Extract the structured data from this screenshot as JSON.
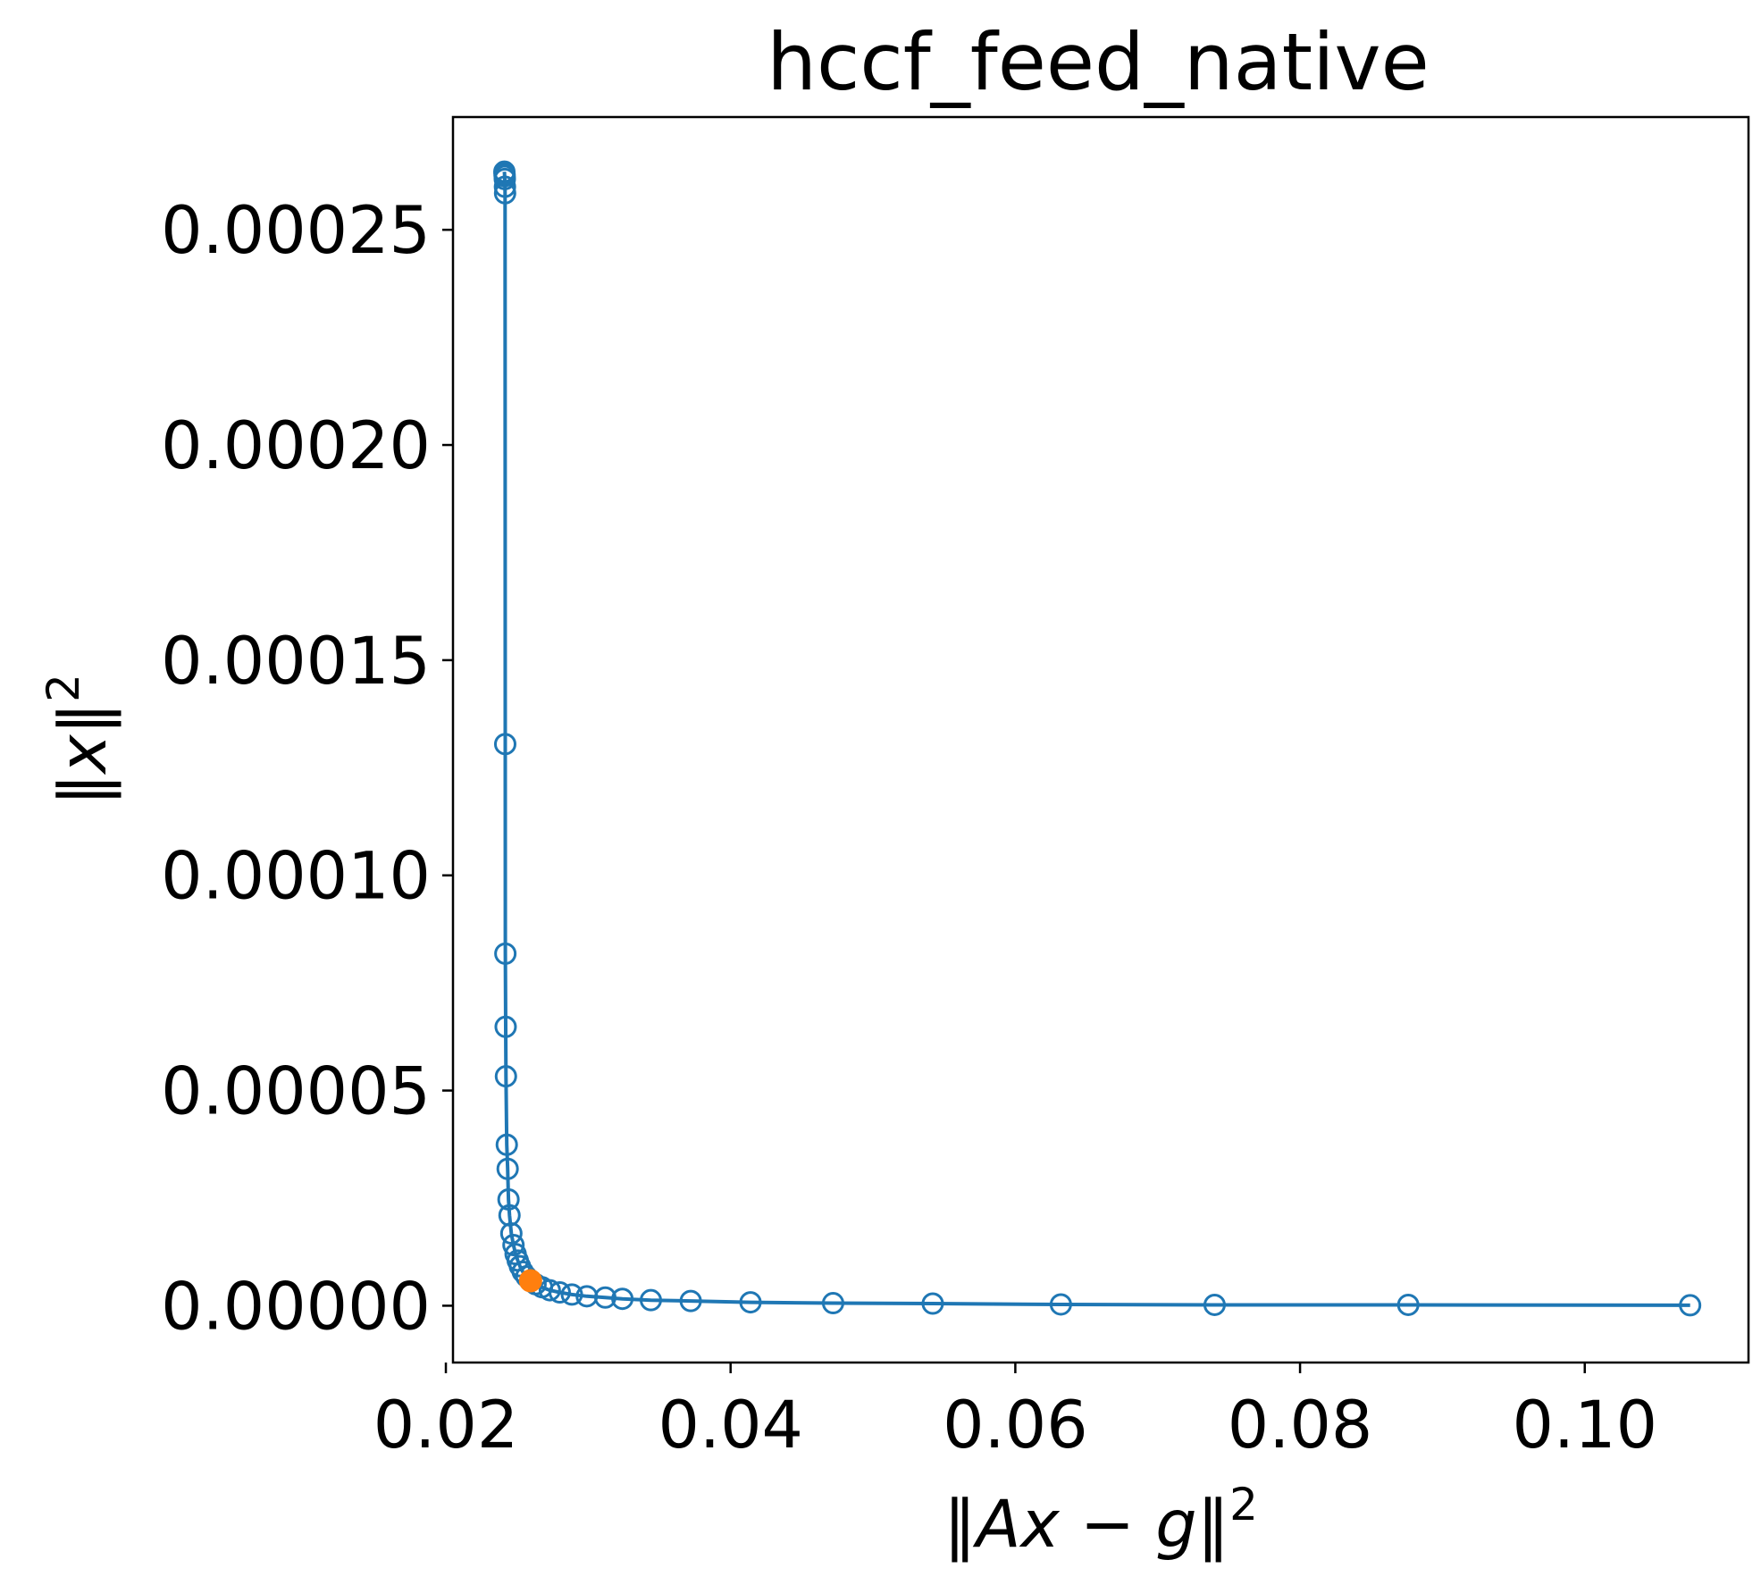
{
  "chart_data": {
    "type": "scatter",
    "title": "hccf_feed_native",
    "xlabel": {
      "open": "‖",
      "expr_a": "Ax",
      "minus": " − ",
      "expr_b": "g",
      "close": "‖",
      "power": "2"
    },
    "ylabel": {
      "open": "‖",
      "expr": "x",
      "close": "‖",
      "power": "2"
    },
    "xlim": [
      0.0205,
      0.1115
    ],
    "ylim": [
      -1.32e-05,
      0.0002762
    ],
    "x_ticks": [
      0.02,
      0.04,
      0.06,
      0.08,
      0.1
    ],
    "x_tick_labels": [
      "0.02",
      "0.04",
      "0.06",
      "0.08",
      "0.10"
    ],
    "y_ticks": [
      0,
      5e-05,
      0.0001,
      0.00015,
      0.0002,
      0.00025
    ],
    "y_tick_labels": [
      "0.00000",
      "0.00005",
      "0.00010",
      "0.00015",
      "0.00020",
      "0.00025"
    ],
    "grid": false,
    "series": [
      {
        "marker": "hollow-circle",
        "color": "#1f77b4",
        "line": true,
        "points": [
          [
            0.02411,
            0.0002635
          ],
          [
            0.02412,
            0.000263
          ],
          [
            0.02413,
            0.0002625
          ],
          [
            0.02414,
            0.0002618
          ],
          [
            0.02415,
            0.00026
          ],
          [
            0.02416,
            0.0002585
          ],
          [
            0.02417,
            0.0001305
          ],
          [
            0.02418,
            8.18e-05
          ],
          [
            0.0242,
            6.48e-05
          ],
          [
            0.02422,
            5.33e-05
          ],
          [
            0.02428,
            3.74e-05
          ],
          [
            0.02434,
            3.18e-05
          ],
          [
            0.0244,
            2.47e-05
          ],
          [
            0.02447,
            2.1e-05
          ],
          [
            0.0246,
            1.68e-05
          ],
          [
            0.02475,
            1.41e-05
          ],
          [
            0.0249,
            1.2e-05
          ],
          [
            0.02505,
            1.05e-05
          ],
          [
            0.0252,
            9.2e-06
          ],
          [
            0.0254,
            7.9e-06
          ],
          [
            0.02565,
            6.8e-06
          ],
          [
            0.02595,
            5.8e-06
          ],
          [
            0.0263,
            5e-06
          ],
          [
            0.02675,
            4.3e-06
          ],
          [
            0.0273,
            3.6e-06
          ],
          [
            0.028,
            3.1e-06
          ],
          [
            0.02885,
            2.6e-06
          ],
          [
            0.0299,
            2.2e-06
          ],
          [
            0.0312,
            1.9e-06
          ],
          [
            0.0324,
            1.6e-06
          ],
          [
            0.0344,
            1.3e-06
          ],
          [
            0.0372,
            1.1e-06
          ],
          [
            0.0414,
            8e-07
          ],
          [
            0.0472,
            6e-07
          ],
          [
            0.0542,
            5e-07
          ],
          [
            0.0632,
            3e-07
          ],
          [
            0.074,
            2e-07
          ],
          [
            0.0876,
            2e-07
          ],
          [
            0.1074,
            1e-07
          ]
        ]
      }
    ],
    "highlight": {
      "marker": "filled-circle",
      "color": "#ff7f0e",
      "point": [
        0.02595,
        5.8e-06
      ]
    }
  }
}
